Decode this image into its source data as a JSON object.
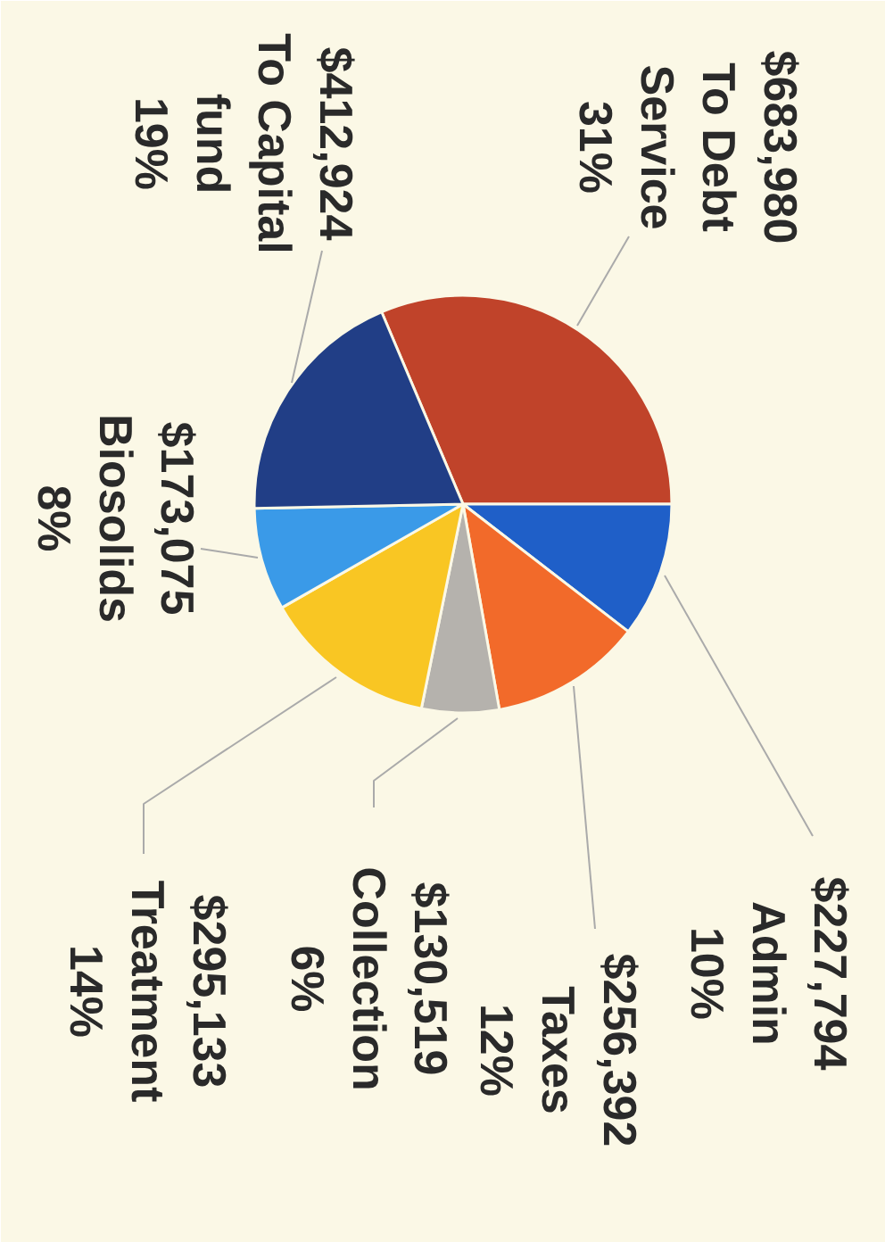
{
  "chart_data": {
    "type": "pie",
    "categories": [
      "To Debt Service",
      "Admin",
      "Taxes",
      "Collection",
      "Treatment",
      "Biosolids",
      "To Capital fund"
    ],
    "values": [
      683980,
      227794,
      256392,
      130519,
      295133,
      173075,
      412924
    ],
    "colors": [
      "#c0432a",
      "#1f5fc8",
      "#f26a2a",
      "#b5b2ad",
      "#f9c623",
      "#3a9ae8",
      "#213e86"
    ],
    "value_labels": [
      "$683,980",
      "$227,794",
      "$256,392",
      "$130,519",
      "$295,133",
      "$173,075",
      "$412,924"
    ],
    "annotations": [
      "31%",
      "10%",
      "12%",
      "6%",
      "14%",
      "8%",
      "19%"
    ]
  }
}
